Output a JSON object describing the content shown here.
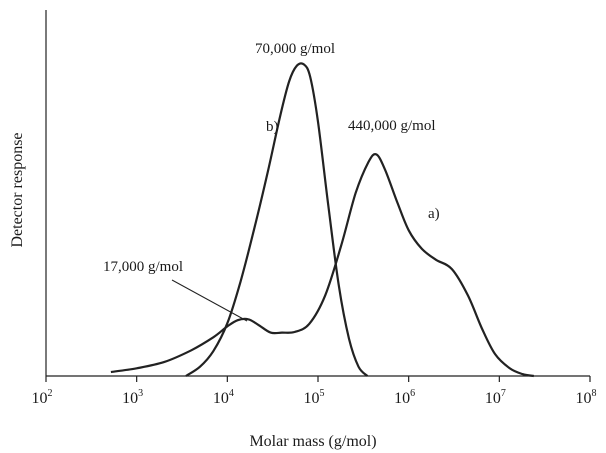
{
  "chart_data": {
    "type": "line",
    "title": "",
    "xlabel": "Molar mass (g/mol)",
    "ylabel": "Detector response",
    "xscale": "log",
    "xlim": [
      100,
      100000000
    ],
    "ylim": [
      0,
      1
    ],
    "grid": false,
    "legend": "none",
    "x_ticks": [
      {
        "base": "10",
        "exp": "2"
      },
      {
        "base": "10",
        "exp": "3"
      },
      {
        "base": "10",
        "exp": "4"
      },
      {
        "base": "10",
        "exp": "5"
      },
      {
        "base": "10",
        "exp": "6"
      },
      {
        "base": "10",
        "exp": "7"
      },
      {
        "base": "10",
        "exp": "8"
      }
    ],
    "series": [
      {
        "label": "a)",
        "x": [
          520,
          1000,
          2000,
          4000,
          7000,
          10000,
          13000,
          17000,
          22000,
          30000,
          40000,
          55000,
          80000,
          120000,
          180000,
          260000,
          360000,
          440000,
          550000,
          750000,
          1000000,
          1400000,
          2000000,
          3000000,
          4500000,
          6500000,
          9000000,
          13000000,
          18000000,
          24000000
        ],
        "y": [
          0.013,
          0.025,
          0.045,
          0.083,
          0.125,
          0.16,
          0.18,
          0.183,
          0.165,
          0.14,
          0.14,
          0.142,
          0.168,
          0.26,
          0.42,
          0.59,
          0.69,
          0.715,
          0.665,
          0.56,
          0.47,
          0.41,
          0.375,
          0.345,
          0.26,
          0.15,
          0.07,
          0.025,
          0.006,
          0.0
        ]
      },
      {
        "label": "b)",
        "x": [
          3500,
          5000,
          7000,
          10000,
          14000,
          20000,
          28000,
          38000,
          48000,
          58000,
          70000,
          82000,
          100000,
          130000,
          170000,
          220000,
          280000,
          350000
        ],
        "y": [
          0.0,
          0.03,
          0.08,
          0.17,
          0.305,
          0.48,
          0.66,
          0.835,
          0.95,
          1.0,
          1.005,
          0.965,
          0.82,
          0.55,
          0.29,
          0.12,
          0.03,
          0.0
        ]
      }
    ],
    "annotations": [
      {
        "text": "70,000 g/mol",
        "x": 70000
      },
      {
        "text": "440,000 g/mol",
        "x": 440000
      },
      {
        "text": "17,000 g/mol",
        "x": 17000
      },
      {
        "text": "a)",
        "series": "a)"
      },
      {
        "text": "b)",
        "series": "b)"
      }
    ]
  }
}
